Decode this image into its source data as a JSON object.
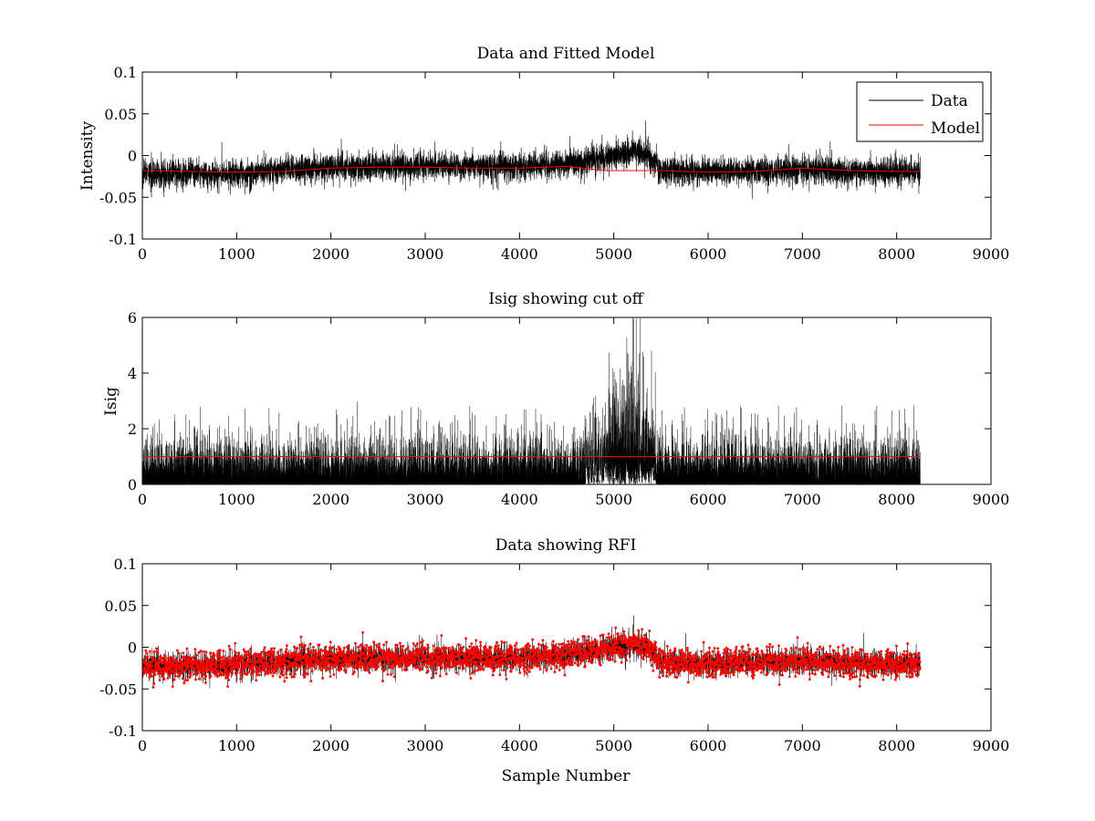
{
  "chart_data": [
    {
      "type": "line",
      "title": "Data and Fitted Model",
      "xlabel": "",
      "ylabel": "Intensity",
      "xlim": [
        0,
        9000
      ],
      "ylim": [
        -0.1,
        0.1
      ],
      "xticks": [
        "0",
        "1000",
        "2000",
        "3000",
        "4000",
        "5000",
        "6000",
        "7000",
        "8000",
        "9000"
      ],
      "yticks": [
        "-0.1",
        "-0.05",
        "0",
        "0.05",
        "0.1"
      ],
      "grid": false,
      "legend": "top-right",
      "n_samples": 8250,
      "series": [
        {
          "name": "Data",
          "color": "#000000",
          "style": "noise-trace",
          "noise_amplitude": 0.013,
          "envelope": {
            "x": [
              0,
              1000,
              1400,
              2000,
              3000,
              4000,
              4500,
              4800,
              5000,
              5200,
              5400,
              5500,
              6000,
              6500,
              7000,
              7500,
              8000,
              8250
            ],
            "y": [
              -0.022,
              -0.022,
              -0.018,
              -0.014,
              -0.013,
              -0.013,
              -0.01,
              -0.005,
              0.0,
              0.004,
              -0.002,
              -0.018,
              -0.02,
              -0.019,
              -0.017,
              -0.019,
              -0.02,
              -0.02
            ]
          }
        },
        {
          "name": "Model",
          "color": "#ff0000",
          "style": "line",
          "x": [
            0,
            500,
            1000,
            1500,
            2000,
            2500,
            3000,
            3500,
            4000,
            4500,
            4900,
            5500,
            6000,
            6500,
            7000,
            7500,
            8000,
            8250
          ],
          "y": [
            -0.018,
            -0.019,
            -0.02,
            -0.019,
            -0.015,
            -0.014,
            -0.014,
            -0.015,
            -0.015,
            -0.013,
            -0.018,
            -0.018,
            -0.02,
            -0.019,
            -0.015,
            -0.018,
            -0.019,
            -0.019
          ]
        }
      ]
    },
    {
      "type": "line",
      "title": "Isig showing cut off",
      "xlabel": "",
      "ylabel": "Isig",
      "xlim": [
        0,
        9000
      ],
      "ylim": [
        0,
        6
      ],
      "xticks": [
        "0",
        "1000",
        "2000",
        "3000",
        "4000",
        "5000",
        "6000",
        "7000",
        "8000",
        "9000"
      ],
      "yticks": [
        "0",
        "2",
        "4",
        "6"
      ],
      "grid": false,
      "n_samples": 8250,
      "series": [
        {
          "color": "#000000",
          "style": "noise-bars",
          "typical_max": 1.3,
          "spike_max": 3.5,
          "burst": {
            "x_start": 4700,
            "x_end": 5450,
            "peak_x": 5150,
            "peak_y": 4.7
          }
        },
        {
          "color": "#ff0000",
          "style": "line",
          "x": [
            0,
            8250
          ],
          "y": [
            1.0,
            1.0
          ]
        }
      ]
    },
    {
      "type": "scatter",
      "title": "Data showing RFI",
      "xlabel": "Sample Number",
      "ylabel": "",
      "xlim": [
        0,
        9000
      ],
      "ylim": [
        -0.1,
        0.1
      ],
      "xticks": [
        "0",
        "1000",
        "2000",
        "3000",
        "4000",
        "5000",
        "6000",
        "7000",
        "8000",
        "9000"
      ],
      "yticks": [
        "-0.1",
        "-0.05",
        "0",
        "0.05",
        "0.1"
      ],
      "grid": false,
      "n_samples": 8250,
      "series": [
        {
          "color": "#ff0000",
          "style": "markers",
          "marker": "dot",
          "noise_amplitude": 0.013,
          "envelope": {
            "x": [
              0,
              1000,
              1400,
              2000,
              3000,
              4000,
              4500,
              4800,
              5000,
              5200,
              5400,
              5500,
              6000,
              6500,
              7000,
              7500,
              8000,
              8250
            ],
            "y": [
              -0.022,
              -0.022,
              -0.018,
              -0.014,
              -0.013,
              -0.013,
              -0.01,
              -0.005,
              0.0,
              0.004,
              -0.002,
              -0.018,
              -0.02,
              -0.019,
              -0.017,
              -0.019,
              -0.02,
              -0.02
            ]
          }
        }
      ]
    }
  ]
}
